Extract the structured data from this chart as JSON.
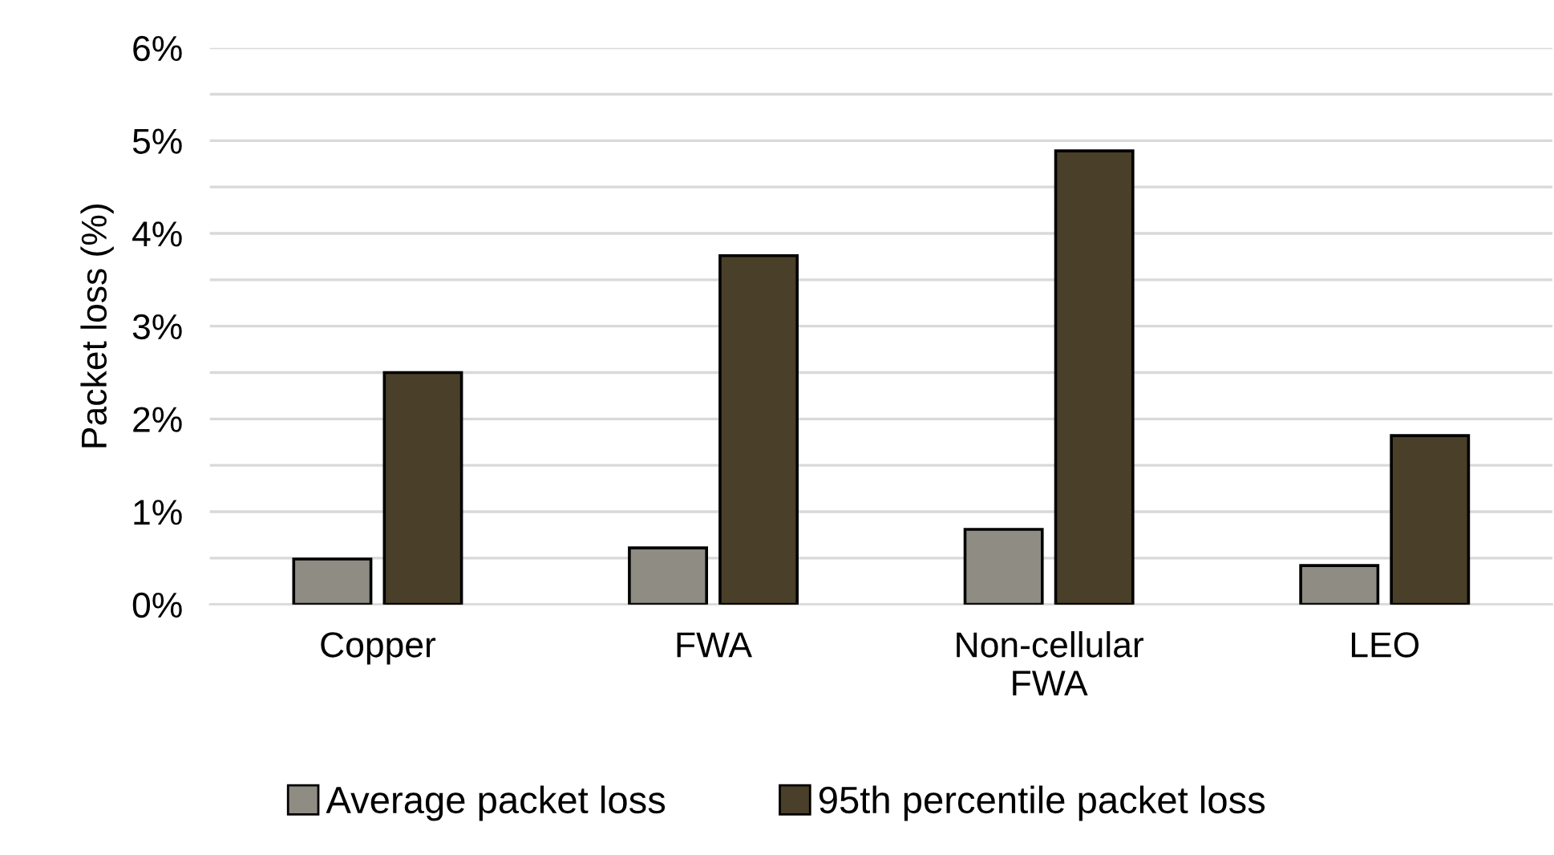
{
  "chart_data": {
    "type": "bar",
    "ylabel": "Packet loss (%)",
    "categories": [
      "Copper",
      "FWA",
      "Non-cellular\nFWA",
      "LEO"
    ],
    "series": [
      {
        "name": "Average packet loss",
        "color": "#8f8c84",
        "values": [
          0.49,
          0.61,
          0.81,
          0.42
        ]
      },
      {
        "name": "95th percentile packet loss",
        "color": "#4a3f28",
        "values": [
          2.5,
          3.76,
          4.89,
          1.82
        ]
      }
    ],
    "ylim": [
      0,
      6
    ],
    "yticks": [
      {
        "value": 0,
        "label": "0%"
      },
      {
        "value": 0.5,
        "label": null
      },
      {
        "value": 1,
        "label": "1%"
      },
      {
        "value": 1.5,
        "label": null
      },
      {
        "value": 2,
        "label": "2%"
      },
      {
        "value": 2.5,
        "label": null
      },
      {
        "value": 3,
        "label": "3%"
      },
      {
        "value": 3.5,
        "label": null
      },
      {
        "value": 4,
        "label": "4%"
      },
      {
        "value": 4.5,
        "label": null
      },
      {
        "value": 5,
        "label": "5%"
      },
      {
        "value": 5.5,
        "label": null
      },
      {
        "value": 6,
        "label": "6%"
      }
    ],
    "grid": "y",
    "legend": "bottom"
  }
}
